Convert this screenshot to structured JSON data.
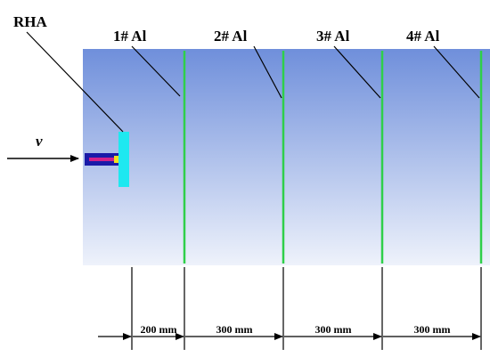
{
  "labels": {
    "projectile_target": "RHA",
    "velocity": "v"
  },
  "plates": [
    "1# Al",
    "2# Al",
    "3# Al",
    "4# Al"
  ],
  "dimensions": [
    "200 mm",
    "300 mm",
    "300 mm",
    "300 mm"
  ]
}
